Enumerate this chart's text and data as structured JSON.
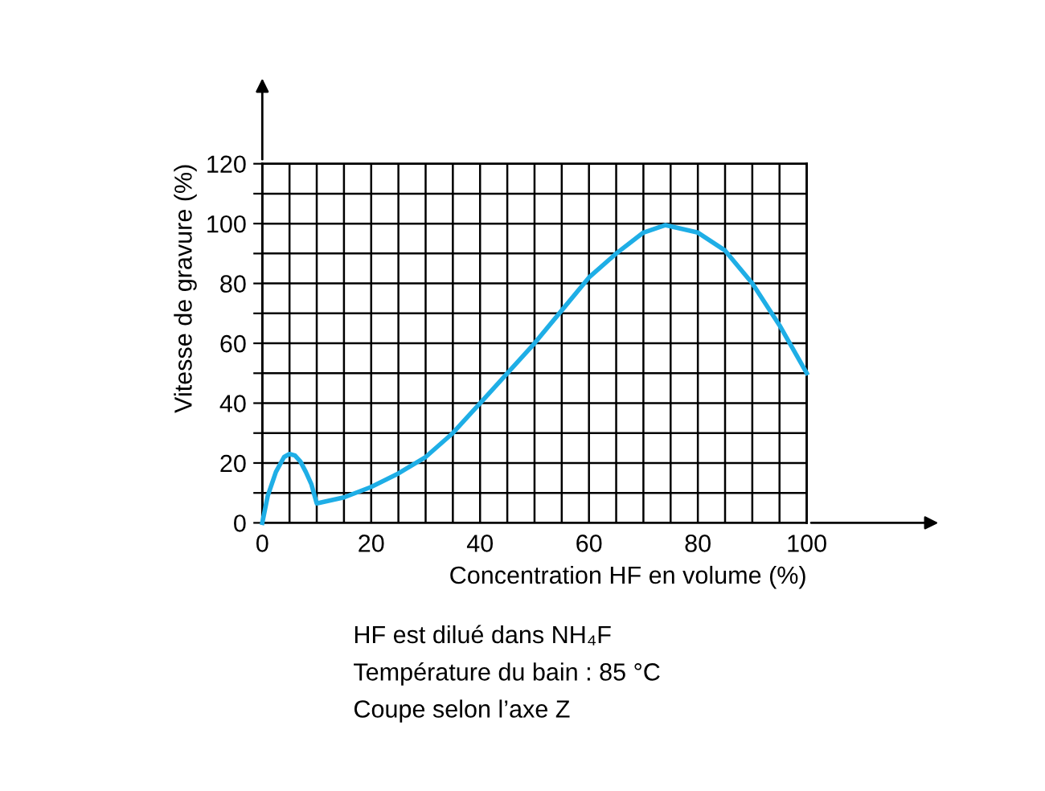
{
  "chart_data": {
    "type": "line",
    "xlabel": "Concentration HF en volume (%)",
    "ylabel": "Vitesse de gravure (%)",
    "x": [
      0,
      1,
      2.5,
      4,
      5,
      6,
      7,
      8,
      9,
      10,
      15,
      20,
      25,
      30,
      35,
      40,
      45,
      50,
      55,
      60,
      65,
      70,
      74,
      80,
      85,
      90,
      95,
      100
    ],
    "series": [
      {
        "color": "#1eaee6",
        "values": [
          0,
          9,
          17,
          22,
          23,
          22.5,
          20.5,
          17,
          13,
          6.5,
          8.5,
          12,
          16.5,
          22,
          30,
          40,
          50,
          60,
          71,
          82,
          90,
          97,
          99.5,
          97,
          91,
          80,
          66,
          50
        ]
      }
    ],
    "xlim": [
      0,
      100
    ],
    "ylim": [
      0,
      120
    ],
    "xticks": [
      0,
      {
        "value": 5,
        "label": null
      },
      20,
      {
        "value": 10,
        "label": null
      },
      {
        "value": 15,
        "label": null
      },
      {
        "value": 25,
        "label": null
      },
      {
        "value": 30,
        "label": null
      },
      {
        "value": 35,
        "label": null
      },
      40,
      {
        "value": 45,
        "label": null
      },
      {
        "value": 50,
        "label": null
      },
      {
        "value": 55,
        "label": null
      },
      60,
      {
        "value": 65,
        "label": null
      },
      {
        "value": 70,
        "label": null
      },
      {
        "value": 75,
        "label": null
      },
      80,
      {
        "value": 85,
        "label": null
      },
      {
        "value": 90,
        "label": null
      },
      {
        "value": 95,
        "label": null
      },
      100
    ],
    "yticks": [
      0,
      {
        "value": 10,
        "label": null
      },
      20,
      {
        "value": 30,
        "label": null
      },
      40,
      {
        "value": 50,
        "label": null
      },
      60,
      {
        "value": 70,
        "label": null
      },
      80,
      {
        "value": 90,
        "label": null
      },
      100,
      {
        "value": 110,
        "label": null
      },
      120
    ],
    "grid": true,
    "marker": "none",
    "line_style": "solid",
    "legend": false,
    "annotations": [
      "HF est dilué dans NH₄F",
      "Température du bain : 85 °C",
      "Coupe selon l’axe Z"
    ]
  }
}
